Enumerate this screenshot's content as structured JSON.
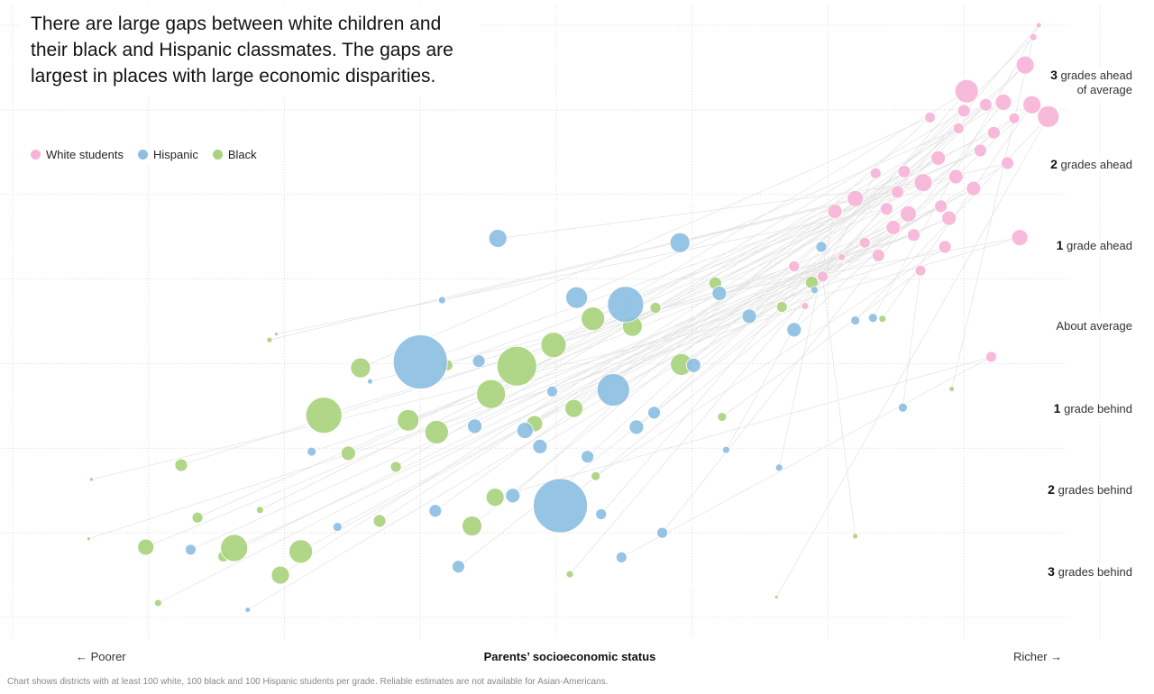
{
  "headline": "There are large gaps between white children and their black and Hispanic classmates. The gaps are largest in places with large economic disparities.",
  "legend": [
    {
      "label": "White students",
      "color": "#f7b4d7"
    },
    {
      "label": "Hispanic",
      "color": "#8dbfe2"
    },
    {
      "label": "Black",
      "color": "#a9d27e"
    }
  ],
  "y_labels": [
    {
      "num": "3",
      "text": "grades ahead of average"
    },
    {
      "num": "2",
      "text": "grades ahead"
    },
    {
      "num": "1",
      "text": "grade ahead"
    },
    {
      "num": "",
      "text": "About average"
    },
    {
      "num": "1",
      "text": "grade behind"
    },
    {
      "num": "2",
      "text": "grades behind"
    },
    {
      "num": "3",
      "text": "grades behind"
    }
  ],
  "x_axis": {
    "left": "← Poorer",
    "title": "Parents’ socioeconomic status",
    "right": "Richer →"
  },
  "note": "Chart shows districts with at least 100 white, 100 black and 100 Hispanic students per grade. Reliable estimates are not available for Asian-Americans.",
  "chart_data": {
    "type": "scatter",
    "xlabel": "Parents’ socioeconomic status",
    "ylabel": "",
    "xlim": [
      -4.5,
      3.5
    ],
    "ylim": [
      -3.5,
      3.5
    ],
    "yticks": [
      3,
      2,
      1,
      0,
      -1,
      -2,
      -3
    ],
    "grid": true,
    "legend_position": "top-left",
    "connector_color": "#e2e2e2",
    "series": [
      {
        "name": "White students",
        "color": "#f7b4d7",
        "points": [
          {
            "x": 1.33,
            "y": 0.18,
            "r": 4
          },
          {
            "x": 1.6,
            "y": 0.76,
            "r": 4
          },
          {
            "x": 1.77,
            "y": 0.93,
            "r": 6
          },
          {
            "x": 1.93,
            "y": 1.33,
            "r": 7
          },
          {
            "x": 1.98,
            "y": 1.11,
            "r": 8
          },
          {
            "x": 1.87,
            "y": 0.78,
            "r": 7
          },
          {
            "x": 2.01,
            "y": 1.53,
            "r": 7
          },
          {
            "x": 2.06,
            "y": 1.77,
            "r": 7
          },
          {
            "x": 2.09,
            "y": 1.27,
            "r": 9
          },
          {
            "x": 2.13,
            "y": 1.02,
            "r": 7
          },
          {
            "x": 2.2,
            "y": 1.64,
            "r": 10
          },
          {
            "x": 2.25,
            "y": 2.41,
            "r": 6
          },
          {
            "x": 2.31,
            "y": 1.93,
            "r": 8
          },
          {
            "x": 2.33,
            "y": 1.36,
            "r": 7
          },
          {
            "x": 2.39,
            "y": 1.22,
            "r": 8
          },
          {
            "x": 2.44,
            "y": 1.71,
            "r": 8
          },
          {
            "x": 2.46,
            "y": 2.28,
            "r": 6
          },
          {
            "x": 2.5,
            "y": 2.49,
            "r": 7
          },
          {
            "x": 2.52,
            "y": 2.72,
            "r": 13
          },
          {
            "x": 2.57,
            "y": 1.57,
            "r": 8
          },
          {
            "x": 2.62,
            "y": 2.02,
            "r": 7
          },
          {
            "x": 2.66,
            "y": 2.56,
            "r": 7
          },
          {
            "x": 2.72,
            "y": 2.23,
            "r": 7
          },
          {
            "x": 2.79,
            "y": 2.59,
            "r": 9
          },
          {
            "x": 2.82,
            "y": 1.87,
            "r": 7
          },
          {
            "x": 2.87,
            "y": 2.4,
            "r": 6
          },
          {
            "x": 2.91,
            "y": 0.99,
            "r": 9
          },
          {
            "x": 2.95,
            "y": 3.03,
            "r": 10
          },
          {
            "x": 3.0,
            "y": 2.56,
            "r": 10
          },
          {
            "x": 3.01,
            "y": 3.36,
            "r": 4
          },
          {
            "x": 3.12,
            "y": 2.42,
            "r": 12
          },
          {
            "x": 3.05,
            "y": 3.5,
            "r": 3
          },
          {
            "x": 2.18,
            "y": 0.6,
            "r": 6
          },
          {
            "x": 1.85,
            "y": 1.75,
            "r": 6
          },
          {
            "x": 1.7,
            "y": 1.45,
            "r": 9
          },
          {
            "x": 2.36,
            "y": 0.88,
            "r": 7
          },
          {
            "x": 1.46,
            "y": 0.53,
            "r": 6
          },
          {
            "x": 2.7,
            "y": -0.42,
            "r": 6
          },
          {
            "x": 1.25,
            "y": 0.65,
            "r": 6
          },
          {
            "x": 1.55,
            "y": 1.3,
            "r": 8
          }
        ]
      },
      {
        "name": "Hispanic",
        "color": "#8dbfe2",
        "points": [
          {
            "x": -3.92,
            "y": -1.87,
            "r": 2
          },
          {
            "x": -3.19,
            "y": -2.7,
            "r": 6
          },
          {
            "x": -2.77,
            "y": -3.41,
            "r": 3
          },
          {
            "x": -2.56,
            "y": -0.15,
            "r": 2
          },
          {
            "x": -2.11,
            "y": -2.43,
            "r": 5
          },
          {
            "x": -1.87,
            "y": -0.71,
            "r": 3
          },
          {
            "x": -1.5,
            "y": -0.48,
            "r": 30
          },
          {
            "x": -1.39,
            "y": -2.24,
            "r": 7
          },
          {
            "x": -1.22,
            "y": -2.9,
            "r": 7
          },
          {
            "x": -1.07,
            "y": -0.47,
            "r": 7
          },
          {
            "x": -0.93,
            "y": 0.98,
            "r": 10
          },
          {
            "x": -0.82,
            "y": -2.06,
            "r": 8
          },
          {
            "x": -0.73,
            "y": -1.29,
            "r": 9
          },
          {
            "x": -0.62,
            "y": -1.48,
            "r": 8
          },
          {
            "x": -0.53,
            "y": -0.83,
            "r": 6
          },
          {
            "x": -0.47,
            "y": -2.18,
            "r": 30
          },
          {
            "x": -0.35,
            "y": 0.28,
            "r": 12
          },
          {
            "x": -0.27,
            "y": -1.6,
            "r": 7
          },
          {
            "x": -0.17,
            "y": -2.28,
            "r": 6
          },
          {
            "x": -0.08,
            "y": -0.81,
            "r": 18
          },
          {
            "x": 0.01,
            "y": 0.2,
            "r": 20
          },
          {
            "x": 0.09,
            "y": -1.25,
            "r": 8
          },
          {
            "x": 0.22,
            "y": -1.08,
            "r": 7
          },
          {
            "x": 0.28,
            "y": -2.5,
            "r": 6
          },
          {
            "x": 0.41,
            "y": 0.93,
            "r": 11
          },
          {
            "x": 0.51,
            "y": -0.52,
            "r": 8
          },
          {
            "x": 0.7,
            "y": 0.33,
            "r": 8
          },
          {
            "x": 0.92,
            "y": 0.06,
            "r": 8
          },
          {
            "x": 1.25,
            "y": -0.1,
            "r": 8
          },
          {
            "x": 1.45,
            "y": 0.88,
            "r": 6
          },
          {
            "x": 1.7,
            "y": 0.01,
            "r": 5
          },
          {
            "x": 1.83,
            "y": 0.04,
            "r": 5
          },
          {
            "x": 2.05,
            "y": -1.02,
            "r": 5
          },
          {
            "x": 1.4,
            "y": 0.37,
            "r": 4
          },
          {
            "x": -1.34,
            "y": 0.25,
            "r": 4
          },
          {
            "x": -2.3,
            "y": -1.54,
            "r": 5
          },
          {
            "x": 0.75,
            "y": -1.52,
            "r": 4
          },
          {
            "x": -0.02,
            "y": -2.79,
            "r": 6
          },
          {
            "x": -1.1,
            "y": -1.24,
            "r": 8
          },
          {
            "x": 1.14,
            "y": -1.73,
            "r": 4
          }
        ]
      },
      {
        "name": "Black",
        "color": "#a9d27e",
        "points": [
          {
            "x": -3.94,
            "y": -2.57,
            "r": 2
          },
          {
            "x": -3.52,
            "y": -2.67,
            "r": 9
          },
          {
            "x": -3.43,
            "y": -3.33,
            "r": 4
          },
          {
            "x": -3.14,
            "y": -2.32,
            "r": 6
          },
          {
            "x": -2.95,
            "y": -2.78,
            "r": 6
          },
          {
            "x": -2.87,
            "y": -2.68,
            "r": 15
          },
          {
            "x": -2.68,
            "y": -2.23,
            "r": 4
          },
          {
            "x": -2.53,
            "y": -3.0,
            "r": 10
          },
          {
            "x": -2.38,
            "y": -2.72,
            "r": 13
          },
          {
            "x": -2.21,
            "y": -1.11,
            "r": 20
          },
          {
            "x": -2.03,
            "y": -1.56,
            "r": 8
          },
          {
            "x": -1.94,
            "y": -0.55,
            "r": 11
          },
          {
            "x": -1.8,
            "y": -2.36,
            "r": 7
          },
          {
            "x": -1.59,
            "y": -1.17,
            "r": 12
          },
          {
            "x": -1.38,
            "y": -1.31,
            "r": 13
          },
          {
            "x": -1.3,
            "y": -0.52,
            "r": 6
          },
          {
            "x": -1.12,
            "y": -2.42,
            "r": 11
          },
          {
            "x": -0.98,
            "y": -0.86,
            "r": 16
          },
          {
            "x": -0.79,
            "y": -0.53,
            "r": 22
          },
          {
            "x": -0.66,
            "y": -1.21,
            "r": 9
          },
          {
            "x": -0.52,
            "y": -0.28,
            "r": 14
          },
          {
            "x": -0.37,
            "y": -1.03,
            "r": 10
          },
          {
            "x": -0.23,
            "y": 0.03,
            "r": 13
          },
          {
            "x": 0.06,
            "y": -0.06,
            "r": 11
          },
          {
            "x": 0.42,
            "y": -0.51,
            "r": 12
          },
          {
            "x": 0.67,
            "y": 0.45,
            "r": 7
          },
          {
            "x": 1.16,
            "y": 0.17,
            "r": 6
          },
          {
            "x": 1.38,
            "y": 0.46,
            "r": 7
          },
          {
            "x": 1.9,
            "y": 0.03,
            "r": 4
          },
          {
            "x": 2.41,
            "y": -0.8,
            "r": 3
          },
          {
            "x": 1.12,
            "y": -3.26,
            "r": 2
          },
          {
            "x": -0.4,
            "y": -2.99,
            "r": 4
          },
          {
            "x": 0.72,
            "y": -1.13,
            "r": 5
          },
          {
            "x": -1.68,
            "y": -1.72,
            "r": 6
          },
          {
            "x": -2.61,
            "y": -0.22,
            "r": 3
          },
          {
            "x": -0.21,
            "y": -1.83,
            "r": 5
          },
          {
            "x": 1.7,
            "y": -2.54,
            "r": 3
          },
          {
            "x": -0.95,
            "y": -2.08,
            "r": 10
          },
          {
            "x": -3.26,
            "y": -1.7,
            "r": 7
          },
          {
            "x": 0.23,
            "y": 0.16,
            "r": 6
          }
        ]
      }
    ]
  }
}
